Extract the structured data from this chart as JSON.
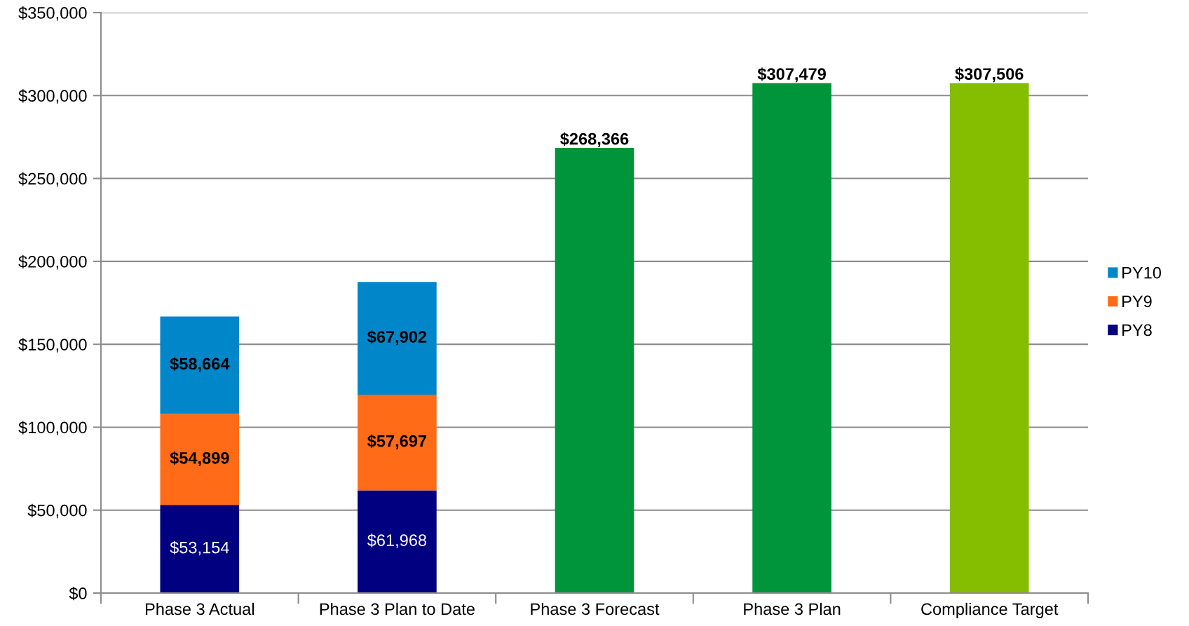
{
  "chart_data": {
    "type": "bar",
    "stacked": true,
    "categories": [
      "Phase 3 Actual",
      "Phase 3 Plan to Date",
      "Phase 3 Forecast",
      "Phase 3 Plan",
      "Compliance Target"
    ],
    "series": [
      {
        "name": "PY8",
        "color": "#000080",
        "values": [
          53154,
          61968,
          null,
          null,
          null
        ],
        "value_labels": [
          "$53,154",
          "$61,968",
          null,
          null,
          null
        ]
      },
      {
        "name": "PY9",
        "color": "#ff6b17",
        "values": [
          54899,
          57697,
          null,
          null,
          null
        ],
        "value_labels": [
          "$54,899",
          "$57,697",
          null,
          null,
          null
        ]
      },
      {
        "name": "PY10",
        "color": "#0086c9",
        "values": [
          58664,
          67902,
          null,
          null,
          null
        ],
        "value_labels": [
          "$58,664",
          "$67,902",
          null,
          null,
          null
        ]
      },
      {
        "colors": [
          null,
          null,
          "#00953a",
          "#00953a",
          "#85bd00"
        ],
        "values": [
          null,
          null,
          268366,
          307479,
          307506
        ],
        "value_labels": [
          null,
          null,
          "$268,366",
          "$307,479",
          "$307,506"
        ]
      }
    ],
    "ylim": [
      0,
      350000
    ],
    "yticks": [
      {
        "value": 0,
        "label": "$0"
      },
      {
        "value": 50000,
        "label": "$50,000"
      },
      {
        "value": 100000,
        "label": "$100,000"
      },
      {
        "value": 150000,
        "label": "$150,000"
      },
      {
        "value": 200000,
        "label": "$200,000"
      },
      {
        "value": 250000,
        "label": "$250,000"
      },
      {
        "value": 300000,
        "label": "$300,000"
      },
      {
        "value": 350000,
        "label": "$350,000"
      }
    ],
    "grid": "y",
    "legend": "right"
  }
}
